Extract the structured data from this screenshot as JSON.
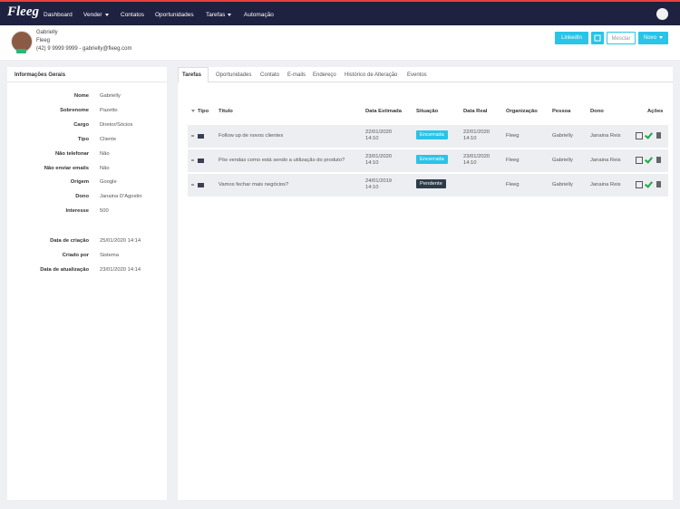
{
  "nav": {
    "logo": "Fleeg",
    "items": [
      "Dashboard",
      "Vender",
      "Contatos",
      "Oportunidades",
      "Tarefas",
      "Automação"
    ]
  },
  "contact": {
    "name": "Gabrielly",
    "company": "Fleeg",
    "phone_email": "(42) 9 9999 9999 - gabrielly@fleeg.com"
  },
  "buttons": [
    "LinkedIn",
    "Mesclar",
    "Novo"
  ],
  "info": {
    "title": "Informações Gerais",
    "fields": [
      [
        "Nome",
        "Gabrielly"
      ],
      [
        "Sobrenome",
        "Pazetto"
      ],
      [
        "Cargo",
        "Diretor/Sócios"
      ],
      [
        "Tipo",
        "Cliente"
      ],
      [
        "Não telefonar",
        "Não"
      ],
      [
        "Não enviar emails",
        "Não"
      ],
      [
        "Origem",
        "Google"
      ],
      [
        "Dono",
        "Janaina D'Agostin"
      ],
      [
        "Interesse",
        "500"
      ]
    ],
    "meta": [
      [
        "Data de criação",
        "25/01/2020 14:14"
      ],
      [
        "Criado por",
        "Sistema"
      ],
      [
        "Data de atualização",
        "23/01/2020 14:14"
      ]
    ]
  },
  "tabs": [
    "Tarefas",
    "Oportunidades",
    "Contato",
    "E-mails",
    "Endereço",
    "Histórico de Alteração",
    "Eventos"
  ],
  "table": {
    "columns": [
      "Tipo",
      "Título",
      "Data Estimada",
      "Situação",
      "Data Real",
      "Organização",
      "Pessoa",
      "Dono",
      "Ações"
    ],
    "rows": [
      [
        "Follow up de novos clientes",
        "22/01/2020 14:10",
        "Encerrada",
        "22/01/2020 14:10",
        "Fleeg",
        "Gabrielly",
        "Janaina Reis"
      ],
      [
        "Pós vendas como está sendo a utilização do produto?",
        "23/01/2020 14:10",
        "Encerrada",
        "23/01/2020 14:10",
        "Fleeg",
        "Gabrielly",
        "Janaina Reis"
      ],
      [
        "Vamos fechar mais negócios?",
        "24/01/2019 14:10",
        "Pendente",
        null,
        "Fleeg",
        "Gabrielly",
        "Janaina Reis"
      ]
    ]
  }
}
